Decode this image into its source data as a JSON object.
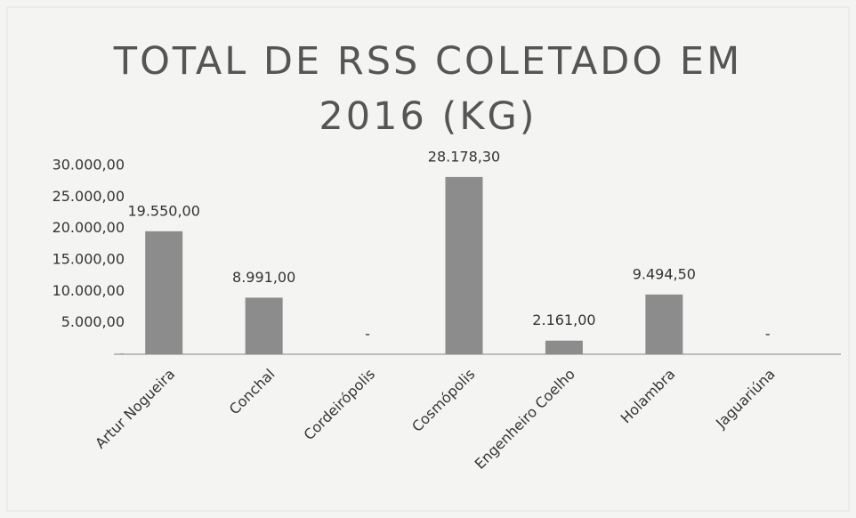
{
  "chart_data": {
    "type": "bar",
    "title": "TOTAL DE RSS COLETADO EM 2016 (KG)",
    "categories": [
      "Artur Nogueira",
      "Conchal",
      "Cordeirópolis",
      "Cosmópolis",
      "Engenheiro Coelho",
      "Holambra",
      "Jaguariúna"
    ],
    "values": [
      19550,
      8991,
      0,
      28178.3,
      2161,
      9494.5,
      0
    ],
    "value_labels": [
      "19.550,00",
      "8.991,00",
      "-",
      "28.178,30",
      "2.161,00",
      "9.494,50",
      "-"
    ],
    "color": "#8c8c8c",
    "ylim": [
      0,
      30000
    ],
    "yticks": [
      {
        "value": 0,
        "label": "-"
      },
      {
        "value": 5000,
        "label": "5.000,00"
      },
      {
        "value": 10000,
        "label": "10.000,00"
      },
      {
        "value": 15000,
        "label": "15.000,00"
      },
      {
        "value": 20000,
        "label": "20.000,00"
      },
      {
        "value": 25000,
        "label": "25.000,00"
      },
      {
        "value": 30000,
        "label": "30.000,00"
      }
    ],
    "grid": false
  }
}
